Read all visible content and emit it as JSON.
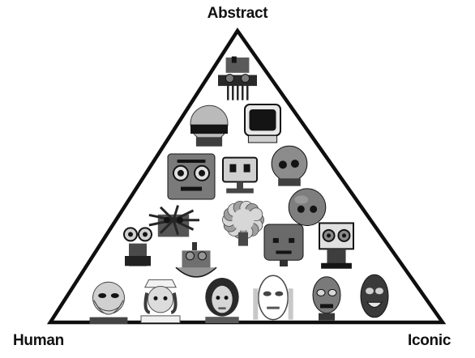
{
  "labels": {
    "top": "Abstract",
    "bottom_left": "Human",
    "bottom_right": "Iconic"
  },
  "colors": {
    "outline": "#0f0f0f",
    "background": "#ffffff"
  },
  "robot_heads": [
    {
      "name": "mechanical-frame-robot-head-icon",
      "kind": "mech",
      "tone": "#5a5a5a"
    },
    {
      "name": "helmet-visor-robot-head-icon",
      "kind": "helmet",
      "tone": "#8a8a8a"
    },
    {
      "name": "box-screen-robot-head-icon",
      "kind": "screen",
      "tone": "#2c2c2c"
    },
    {
      "name": "big-eyes-box-robot-head-icon",
      "kind": "boxeyes",
      "tone": "#7a7a7a"
    },
    {
      "name": "small-box-robot-head-icon",
      "kind": "smallbox",
      "tone": "#9a9a9a"
    },
    {
      "name": "round-dome-robot-head-icon",
      "kind": "dome",
      "tone": "#8c8c8c"
    },
    {
      "name": "spiky-mechanism-robot-head-icon",
      "kind": "spiky",
      "tone": "#555555"
    },
    {
      "name": "binocular-robot-head-icon",
      "kind": "binocular",
      "tone": "#4a4a4a"
    },
    {
      "name": "furry-robot-head-icon",
      "kind": "furry",
      "tone": "#9f9f9f"
    },
    {
      "name": "sphere-robot-head-icon",
      "kind": "sphere",
      "tone": "#7e7e7e"
    },
    {
      "name": "square-face-robot-head-icon",
      "kind": "squareface",
      "tone": "#6a6a6a"
    },
    {
      "name": "camera-eyes-robot-head-icon",
      "kind": "cameraeyes",
      "tone": "#8a8a8a"
    },
    {
      "name": "open-mechanism-robot-head-icon",
      "kind": "openmech",
      "tone": "#6f6f6f"
    },
    {
      "name": "bearded-man-face-icon",
      "kind": "man",
      "tone": "#9a9a9a"
    },
    {
      "name": "nurse-android-face-icon",
      "kind": "nurse",
      "tone": "#b5b5b5"
    },
    {
      "name": "woman-android-face-icon",
      "kind": "woman",
      "tone": "#bdbdbd"
    },
    {
      "name": "metallic-face-robot-head-icon",
      "kind": "metalface",
      "tone": "#c8c8c8"
    },
    {
      "name": "humanoid-metal-robot-head-icon",
      "kind": "humanoid",
      "tone": "#7a7a7a"
    },
    {
      "name": "dark-masked-robot-head-icon",
      "kind": "darkmask",
      "tone": "#3a3a3a"
    }
  ]
}
